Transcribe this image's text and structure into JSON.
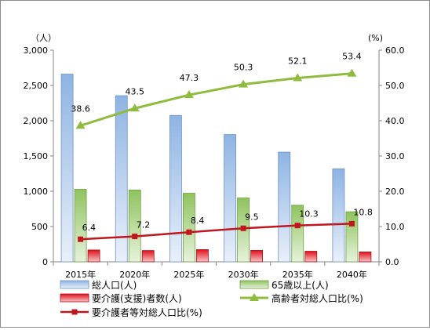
{
  "chart_data": {
    "type": "bar+line",
    "categories": [
      "2015年",
      "2020年",
      "2025年",
      "2030年",
      "2035年",
      "2040年"
    ],
    "left_axis": {
      "unit": "（人）",
      "ylim": [
        0,
        3000
      ],
      "ticks": [
        "0",
        "500",
        "1,000",
        "1,500",
        "2,000",
        "2,500",
        "3,000"
      ]
    },
    "right_axis": {
      "unit": "(%)",
      "ylim": [
        0,
        60
      ],
      "ticks": [
        "0.0",
        "10.0",
        "20.0",
        "30.0",
        "40.0",
        "50.0",
        "60.0"
      ]
    },
    "series": [
      {
        "name": "総人口(人)",
        "kind": "bar",
        "axis": "left",
        "color": "#8eb4e3",
        "values": [
          2660,
          2355,
          2075,
          1805,
          1555,
          1318
        ]
      },
      {
        "name": "65歳以上(人)",
        "kind": "bar",
        "axis": "left",
        "color": "#9bcb69",
        "values": [
          1028,
          1018,
          972,
          905,
          802,
          710
        ]
      },
      {
        "name": "要介護(支援)者数(人)",
        "kind": "bar",
        "axis": "left",
        "color": "#e0101a",
        "values": [
          168,
          160,
          173,
          162,
          150,
          140
        ]
      },
      {
        "name": "高齢者対総人口比(%)",
        "kind": "line",
        "axis": "right",
        "color": "#8fbc3e",
        "values": [
          38.6,
          43.5,
          47.3,
          50.3,
          52.1,
          53.4
        ],
        "labels": [
          "38.6",
          "43.5",
          "47.3",
          "50.3",
          "52.1",
          "53.4"
        ]
      },
      {
        "name": "要介護者等対総人口比(%)",
        "kind": "line",
        "axis": "right",
        "color": "#c0161e",
        "values": [
          6.4,
          7.2,
          8.4,
          9.5,
          10.3,
          10.8
        ],
        "labels": [
          "6.4",
          "7.2",
          "8.4",
          "9.5",
          "10.3",
          "10.8"
        ]
      }
    ],
    "grid": false,
    "legend_position": "bottom"
  }
}
